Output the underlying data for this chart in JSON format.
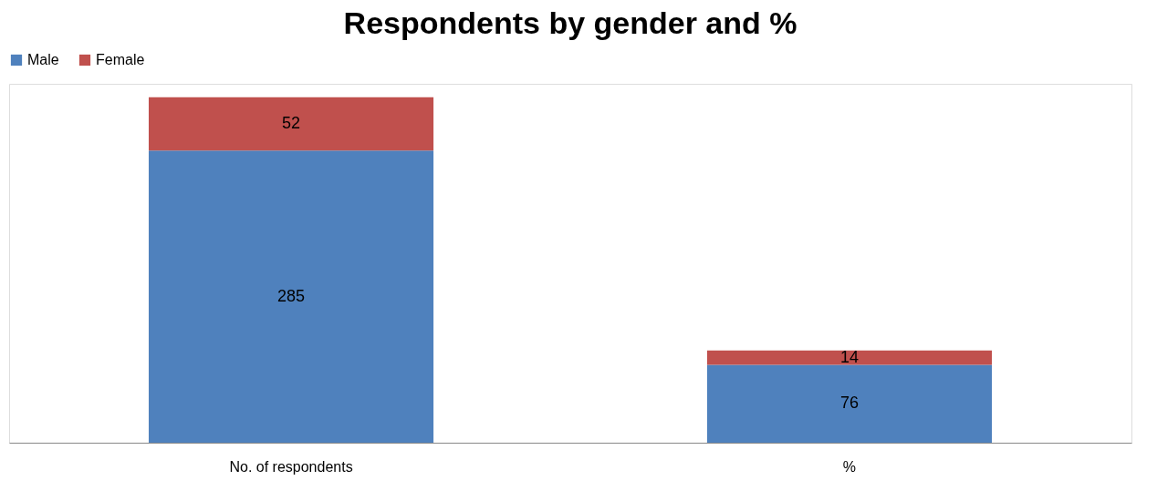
{
  "chart_data": {
    "type": "bar",
    "title": "Respondents by gender and %",
    "categories": [
      "No. of respondents",
      "%"
    ],
    "stacked": true,
    "data_labels": true,
    "legend": "top",
    "grid": false,
    "series": [
      {
        "name": "Male",
        "color": "#4f81bd",
        "values": [
          285,
          76
        ]
      },
      {
        "name": "Female",
        "color": "#c0504d",
        "values": [
          52,
          14
        ]
      }
    ]
  }
}
